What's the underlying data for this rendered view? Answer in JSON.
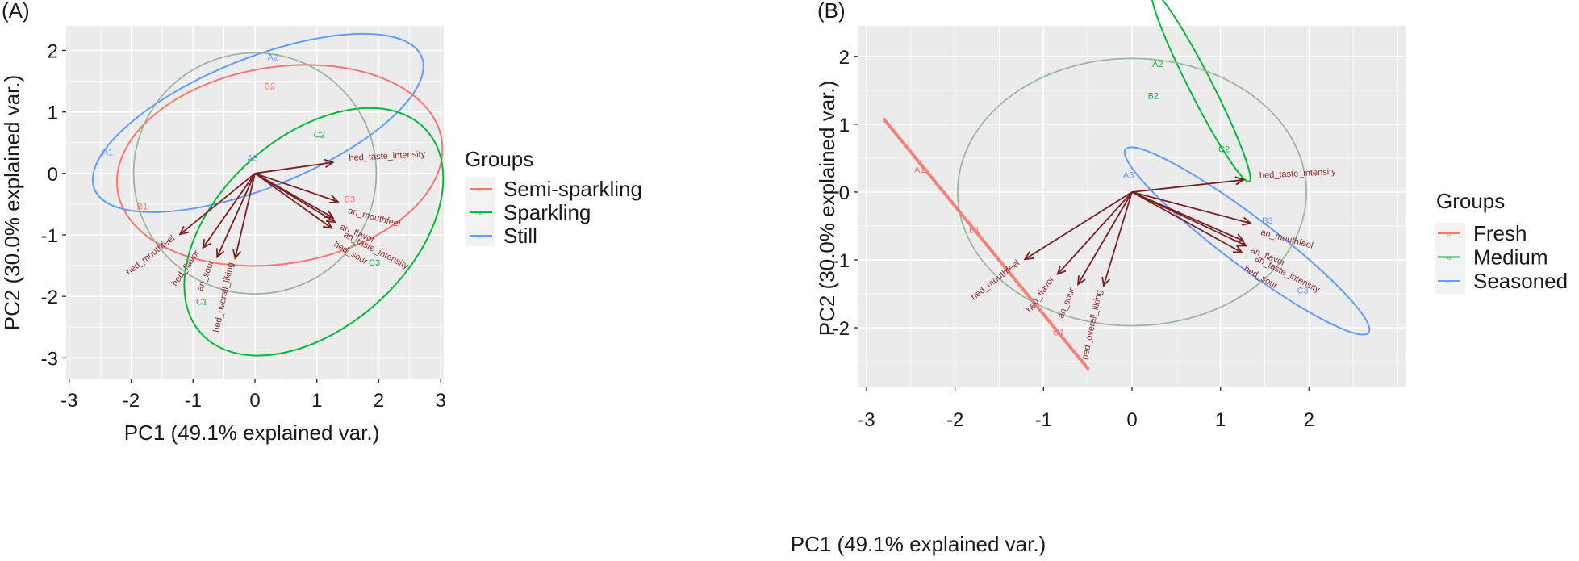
{
  "chart_data": [
    {
      "type": "scatter",
      "subtype": "pca-biplot",
      "panel_label": "(A)",
      "xlabel": "PC1 (49.1% explained var.)",
      "ylabel": "PC2 (30.0% explained var.)",
      "xlim": [
        -3.05,
        3.05
      ],
      "ylim": [
        -3.35,
        2.4
      ],
      "xticks": [
        -3,
        -2,
        -1,
        0,
        1,
        2,
        3
      ],
      "yticks": [
        -3,
        -2,
        -1,
        0,
        1,
        2
      ],
      "xtick_labels": [
        "-3",
        "-2",
        "-1",
        "0",
        "1",
        "2",
        "3"
      ],
      "ytick_labels": [
        "-3",
        "-2",
        "-1",
        "0",
        "1",
        "2"
      ],
      "grid": true,
      "legend": {
        "title": "Groups",
        "placement": "right",
        "entries": [
          {
            "name": "Semi-sparkling",
            "color": "#f8766d"
          },
          {
            "name": "Sparkling",
            "color": "#00ba38"
          },
          {
            "name": "Still",
            "color": "#619cff"
          }
        ]
      },
      "observations": [
        {
          "label": "A1",
          "group": "Still",
          "x": -2.38,
          "y": 0.33
        },
        {
          "label": "A2",
          "group": "Still",
          "x": 0.29,
          "y": 1.88
        },
        {
          "label": "A3",
          "group": "Still",
          "x": -0.04,
          "y": 0.24
        },
        {
          "label": "B1",
          "group": "Semi-sparkling",
          "x": -1.82,
          "y": -0.55
        },
        {
          "label": "B2",
          "group": "Semi-sparkling",
          "x": 0.24,
          "y": 1.41
        },
        {
          "label": "B3",
          "group": "Semi-sparkling",
          "x": 1.53,
          "y": -0.43
        },
        {
          "label": "C1",
          "group": "Sparkling",
          "x": -0.86,
          "y": -2.1
        },
        {
          "label": "C2",
          "group": "Sparkling",
          "x": 1.04,
          "y": 0.62
        },
        {
          "label": "C3",
          "group": "Sparkling",
          "x": 1.93,
          "y": -1.46
        }
      ],
      "loadings": [
        {
          "name": "hed_taste_intensity",
          "x": 1.26,
          "y": 0.18
        },
        {
          "name": "an_mouthfeel",
          "x": 1.34,
          "y": -0.46
        },
        {
          "name": "an_flavor",
          "x": 1.26,
          "y": -0.72
        },
        {
          "name": "an_taste_intensity",
          "x": 1.29,
          "y": -0.79
        },
        {
          "name": "hed_sour",
          "x": 1.24,
          "y": -0.89
        },
        {
          "name": "hed_mouthfeel",
          "x": -1.21,
          "y": -0.99
        },
        {
          "name": "hed_flavor",
          "x": -0.84,
          "y": -1.21
        },
        {
          "name": "an_sour",
          "x": -0.61,
          "y": -1.36
        },
        {
          "name": "hed_overall_liking",
          "x": -0.32,
          "y": -1.38
        }
      ],
      "ellipses": [
        {
          "group": "Still",
          "cx": 0.05,
          "cy": 0.82,
          "rx": 2.85,
          "ry": 1.05,
          "angle_deg": 22
        },
        {
          "group": "Semi-sparkling",
          "cx": 0.4,
          "cy": 0.13,
          "rx": 2.65,
          "ry": 1.6,
          "angle_deg": 9
        },
        {
          "group": "Sparkling",
          "cx": 0.95,
          "cy": -0.95,
          "rx": 2.45,
          "ry": 1.55,
          "angle_deg": 42
        }
      ],
      "correlation_circle_radius": 1.96
    },
    {
      "type": "scatter",
      "subtype": "pca-biplot",
      "panel_label": "(B)",
      "xlabel": "PC1 (49.1% explained var.)",
      "ylabel": "PC2 (30.0% explained var.)",
      "xlim": [
        -3.1,
        3.1
      ],
      "ylim": [
        -2.88,
        2.45
      ],
      "xticks": [
        -3,
        -2,
        -1,
        0,
        1,
        2
      ],
      "yticks": [
        -2,
        -1,
        0,
        1,
        2
      ],
      "xtick_labels": [
        "-3",
        "-2",
        "-1",
        "0",
        "1",
        "2"
      ],
      "ytick_labels": [
        "-2",
        "-1",
        "0",
        "1",
        "2"
      ],
      "grid": true,
      "legend": {
        "title": "Groups",
        "placement": "right",
        "entries": [
          {
            "name": "Fresh",
            "color": "#f8766d"
          },
          {
            "name": "Medium",
            "color": "#00ba38"
          },
          {
            "name": "Seasoned",
            "color": "#619cff"
          }
        ]
      },
      "observations": [
        {
          "label": "A1",
          "group": "Fresh",
          "x": -2.4,
          "y": 0.32
        },
        {
          "label": "B1",
          "group": "Fresh",
          "x": -1.78,
          "y": -0.57
        },
        {
          "label": "C1",
          "group": "Fresh",
          "x": -0.83,
          "y": -2.08
        },
        {
          "label": "A2",
          "group": "Medium",
          "x": 0.29,
          "y": 1.88
        },
        {
          "label": "B2",
          "group": "Medium",
          "x": 0.24,
          "y": 1.41
        },
        {
          "label": "C2",
          "group": "Medium",
          "x": 1.04,
          "y": 0.62
        },
        {
          "label": "A3",
          "group": "Seasoned",
          "x": -0.04,
          "y": 0.24
        },
        {
          "label": "B3",
          "group": "Seasoned",
          "x": 1.53,
          "y": -0.43
        },
        {
          "label": "C3",
          "group": "Seasoned",
          "x": 1.93,
          "y": -1.46
        }
      ],
      "loadings": [
        {
          "name": "hed_taste_intensity",
          "x": 1.26,
          "y": 0.18
        },
        {
          "name": "an_mouthfeel",
          "x": 1.34,
          "y": -0.46
        },
        {
          "name": "an_flavor",
          "x": 1.26,
          "y": -0.72
        },
        {
          "name": "an_taste_intensity",
          "x": 1.29,
          "y": -0.79
        },
        {
          "name": "hed_sour",
          "x": 1.24,
          "y": -0.89
        },
        {
          "name": "hed_mouthfeel",
          "x": -1.21,
          "y": -0.99
        },
        {
          "name": "hed_flavor",
          "x": -0.84,
          "y": -1.21
        },
        {
          "name": "an_sour",
          "x": -0.61,
          "y": -1.36
        },
        {
          "name": "hed_overall_liking",
          "x": -0.32,
          "y": -1.38
        }
      ],
      "ellipses": [
        {
          "group": "Fresh",
          "degenerate_line": [
            [
              -2.8,
              1.07
            ],
            [
              -0.5,
              -2.6
            ]
          ]
        },
        {
          "group": "Medium",
          "cx": 0.78,
          "cy": 1.55,
          "rx": 1.2,
          "ry": 0.17,
          "angle_deg": -63
        },
        {
          "group": "Seasoned",
          "cx": 1.3,
          "cy": -0.72,
          "rx": 1.72,
          "ry": 0.36,
          "angle_deg": -37
        }
      ],
      "correlation_circle_radius": 1.97
    }
  ]
}
